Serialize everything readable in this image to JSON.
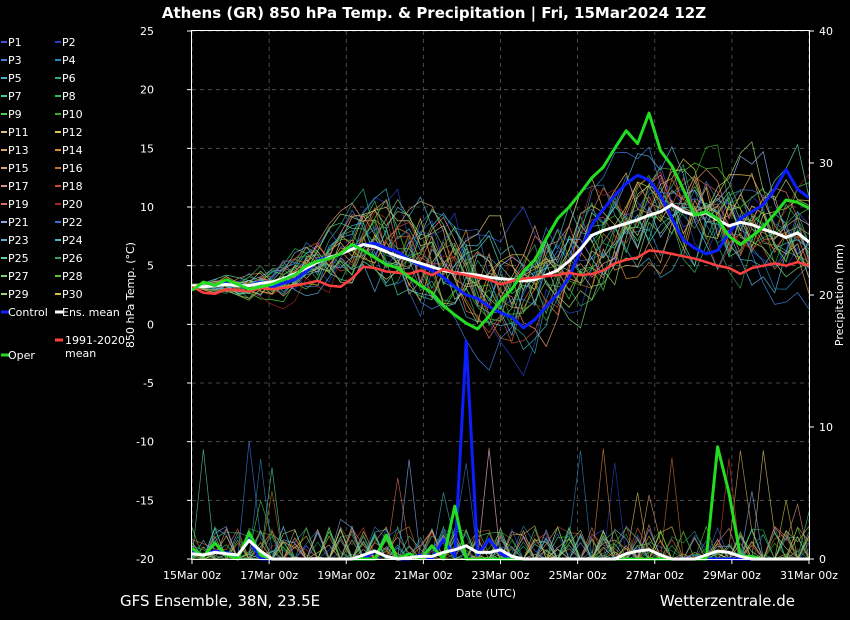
{
  "header": {
    "title": "Athens  (GR)  850 hPa Temp. & Precipitation | Fri, 15Mar2024 12Z"
  },
  "footer": {
    "left": "GFS Ensemble, 38N, 23.5E",
    "right": "Wetterzentrale.de"
  },
  "colors": {
    "background": "#000000",
    "grid": "#5a5a5a",
    "control": "#0a1eff",
    "ens_mean": "#ffffff",
    "climate_mean": "#ff4040",
    "oper": "#22dd22"
  },
  "chart_data": {
    "type": "line",
    "xlabel": "Date (UTC)",
    "ylabel": "850 hPa Temp. (°C)",
    "y2label": "Precipitation (mm)",
    "x_ticks": [
      "15Mar 00z",
      "17Mar 00z",
      "19Mar 00z",
      "21Mar 00z",
      "23Mar 00z",
      "25Mar 00z",
      "27Mar 00z",
      "29Mar 00z",
      "31Mar 00z"
    ],
    "x_range_days": [
      0,
      16
    ],
    "ylim": [
      -20,
      25
    ],
    "y_ticks": [
      25,
      20,
      15,
      10,
      5,
      0,
      -5,
      -10,
      -15,
      -20
    ],
    "y2lim": [
      0,
      40
    ],
    "y2_ticks": [
      40,
      30,
      20,
      10,
      0
    ],
    "grid": true,
    "legend": {
      "placement": "left",
      "items": [
        {
          "label": "P1",
          "color": "#3b55e6"
        },
        {
          "label": "P2",
          "color": "#2a3fbf"
        },
        {
          "label": "P3",
          "color": "#3f7fe0"
        },
        {
          "label": "P4",
          "color": "#2e86c1"
        },
        {
          "label": "P5",
          "color": "#40b0c8"
        },
        {
          "label": "P6",
          "color": "#2fa88a"
        },
        {
          "label": "P7",
          "color": "#3ccf8a"
        },
        {
          "label": "P8",
          "color": "#2fbf5a"
        },
        {
          "label": "P9",
          "color": "#45d045"
        },
        {
          "label": "P10",
          "color": "#3aaa2a"
        },
        {
          "label": "P11",
          "color": "#d6c77a"
        },
        {
          "label": "P12",
          "color": "#e0c050"
        },
        {
          "label": "P13",
          "color": "#d8a860"
        },
        {
          "label": "P14",
          "color": "#d88a3a"
        },
        {
          "label": "P15",
          "color": "#e0a070"
        },
        {
          "label": "P16",
          "color": "#c8702a"
        },
        {
          "label": "P17",
          "color": "#e09080"
        },
        {
          "label": "P18",
          "color": "#c84a3a"
        },
        {
          "label": "P19",
          "color": "#e07060"
        },
        {
          "label": "P20",
          "color": "#a02a20"
        },
        {
          "label": "P21",
          "color": "#8aaae8"
        },
        {
          "label": "P22",
          "color": "#3a6ec8"
        },
        {
          "label": "P23",
          "color": "#5ab0d8"
        },
        {
          "label": "P24",
          "color": "#4ab8c8"
        },
        {
          "label": "P25",
          "color": "#5ad0a0"
        },
        {
          "label": "P26",
          "color": "#3aa060"
        },
        {
          "label": "P27",
          "color": "#7ad07a"
        },
        {
          "label": "P28",
          "color": "#5ac03a"
        },
        {
          "label": "P29",
          "color": "#a0d070"
        },
        {
          "label": "P30",
          "color": "#d0c040"
        },
        {
          "label": "Control",
          "color": "#0a1eff"
        },
        {
          "label": "Ens. mean",
          "color": "#ffffff"
        },
        {
          "label": "1991-2020 mean",
          "color": "#ff4040"
        },
        {
          "label": "Oper",
          "color": "#22dd22"
        }
      ]
    },
    "series": [
      {
        "name": "Control",
        "kind": "temp",
        "values": [
          3.3,
          3.2,
          3.3,
          3.5,
          3.3,
          3.3,
          3.6,
          3.2,
          3.5,
          3.8,
          4.5,
          5.5,
          5.7,
          6.0,
          6.6,
          6.8,
          6.9,
          6.5,
          6.2,
          5.5,
          5.0,
          4.6,
          4.0,
          3.2,
          2.5,
          2.2,
          1.5,
          1.0,
          0.6,
          -0.3,
          0.4,
          1.5,
          2.6,
          4.0,
          6.3,
          8.5,
          9.8,
          11.0,
          12.0,
          12.7,
          12.3,
          11.0,
          9.0,
          7.2,
          6.5,
          6.0,
          6.3,
          7.8,
          9.0,
          9.6,
          10.2,
          11.5,
          13.2,
          11.5,
          10.8
        ]
      },
      {
        "name": "Ens. mean",
        "kind": "temp",
        "values": [
          3.3,
          3.2,
          3.3,
          3.4,
          3.3,
          3.3,
          3.5,
          3.6,
          3.9,
          4.3,
          4.8,
          5.3,
          5.7,
          6.0,
          6.4,
          6.8,
          6.6,
          6.2,
          5.8,
          5.5,
          5.2,
          4.9,
          4.6,
          4.4,
          4.3,
          4.2,
          4.0,
          3.9,
          3.8,
          3.7,
          3.8,
          4.2,
          4.6,
          5.4,
          6.4,
          7.6,
          8.0,
          8.3,
          8.6,
          8.9,
          9.3,
          9.6,
          10.2,
          9.6,
          9.3,
          9.5,
          8.9,
          8.4,
          8.7,
          8.5,
          8.1,
          7.8,
          7.4,
          7.8,
          7.0
        ]
      },
      {
        "name": "1991-2020 mean",
        "kind": "temp",
        "values": [
          3.2,
          2.7,
          2.6,
          3.0,
          2.9,
          2.8,
          3.1,
          3.0,
          3.1,
          3.3,
          3.5,
          3.7,
          3.3,
          3.2,
          3.9,
          4.9,
          4.8,
          4.5,
          4.4,
          4.3,
          4.6,
          4.2,
          4.7,
          4.4,
          4.2,
          4.0,
          3.8,
          3.4,
          3.7,
          3.9,
          4.0,
          4.1,
          4.2,
          4.4,
          4.2,
          4.3,
          4.6,
          5.2,
          5.5,
          5.7,
          6.3,
          6.2,
          6.0,
          5.8,
          5.6,
          5.3,
          5.0,
          4.8,
          4.3,
          4.8,
          5.0,
          5.2,
          5.0,
          5.3,
          5.0
        ]
      },
      {
        "name": "Oper",
        "kind": "temp",
        "values": [
          2.9,
          3.6,
          3.3,
          3.8,
          3.4,
          3.0,
          3.2,
          3.4,
          3.8,
          4.2,
          5.0,
          5.4,
          5.6,
          6.0,
          6.8,
          6.3,
          5.7,
          5.1,
          4.8,
          4.0,
          3.3,
          2.7,
          1.6,
          0.8,
          0.1,
          -0.4,
          0.7,
          2.0,
          3.0,
          4.5,
          5.5,
          7.3,
          9.0,
          10.0,
          11.2,
          12.5,
          13.4,
          15.0,
          16.5,
          15.4,
          18.0,
          14.8,
          13.5,
          11.5,
          9.3,
          9.6,
          9.0,
          7.5,
          6.8,
          7.5,
          8.3,
          9.4,
          10.6,
          10.4,
          9.9
        ]
      },
      {
        "name": "Control",
        "kind": "precip",
        "values": [
          0.5,
          0.3,
          0.6,
          0.5,
          0.2,
          1.5,
          0,
          0,
          0,
          0,
          0,
          0,
          0,
          0,
          0,
          0,
          0.6,
          0.2,
          0,
          0,
          0.3,
          0,
          1.5,
          0.2,
          16.5,
          0.3,
          1.5,
          0.4,
          0,
          0,
          0,
          0,
          0,
          0,
          0,
          0,
          0,
          0,
          0,
          0,
          0,
          0,
          0,
          0,
          0,
          0,
          0,
          0,
          0,
          0,
          0,
          0,
          0,
          0,
          0
        ]
      },
      {
        "name": "Oper",
        "kind": "precip",
        "values": [
          0.8,
          0.2,
          1.2,
          0.3,
          0,
          2.0,
          0.3,
          0,
          0,
          0,
          0,
          0,
          0,
          0,
          0,
          0,
          0,
          1.8,
          0,
          0.4,
          0,
          1.0,
          0,
          4.0,
          0,
          0,
          0,
          0,
          0,
          0,
          0,
          0,
          0,
          0,
          0,
          0,
          0,
          0,
          0,
          0,
          0,
          0,
          0,
          0,
          0,
          0,
          8.5,
          5.0,
          0.2,
          0.2,
          0,
          0,
          0,
          0,
          0
        ]
      },
      {
        "name": "Ens. mean",
        "kind": "precip",
        "values": [
          0.4,
          0.3,
          0.5,
          0.4,
          0.3,
          1.4,
          0.6,
          0,
          0,
          0,
          0,
          0,
          0,
          0,
          0,
          0.3,
          0.6,
          0.2,
          0,
          0.1,
          0.2,
          0.2,
          0.5,
          0.7,
          1.0,
          0.5,
          0.5,
          0.7,
          0.2,
          0,
          0,
          0,
          0,
          0,
          0,
          0,
          0,
          0,
          0.4,
          0.6,
          0.7,
          0.3,
          0,
          0,
          0,
          0.3,
          0.6,
          0.5,
          0.2,
          0,
          0,
          0,
          0,
          0,
          0
        ]
      }
    ]
  }
}
